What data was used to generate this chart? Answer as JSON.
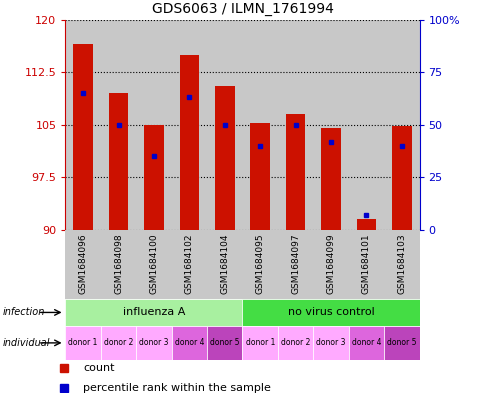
{
  "title": "GDS6063 / ILMN_1761994",
  "samples": [
    "GSM1684096",
    "GSM1684098",
    "GSM1684100",
    "GSM1684102",
    "GSM1684104",
    "GSM1684095",
    "GSM1684097",
    "GSM1684099",
    "GSM1684101",
    "GSM1684103"
  ],
  "counts": [
    116.5,
    109.5,
    105.0,
    115.0,
    110.5,
    105.2,
    106.5,
    104.5,
    91.5,
    104.8
  ],
  "percentile_ranks": [
    65,
    50,
    35,
    63,
    50,
    40,
    50,
    42,
    7,
    40
  ],
  "ylim_left": [
    90,
    120
  ],
  "ylim_right": [
    0,
    100
  ],
  "yticks_left": [
    90,
    97.5,
    105,
    112.5,
    120
  ],
  "yticks_right": [
    0,
    25,
    50,
    75,
    100
  ],
  "ytick_right_labels": [
    "0",
    "25",
    "50",
    "75",
    "100%"
  ],
  "infection_groups": [
    {
      "label": "influenza A",
      "start": 0,
      "end": 5,
      "color": "#A8F0A0"
    },
    {
      "label": "no virus control",
      "start": 5,
      "end": 10,
      "color": "#44DD44"
    }
  ],
  "individual_labels": [
    "donor 1",
    "donor 2",
    "donor 3",
    "donor 4",
    "donor 5",
    "donor 1",
    "donor 2",
    "donor 3",
    "donor 4",
    "donor 5"
  ],
  "individual_colors": [
    "#FFAAFF",
    "#FFAAFF",
    "#FFAAFF",
    "#DD66DD",
    "#BB44BB",
    "#FFAAFF",
    "#FFAAFF",
    "#FFAAFF",
    "#DD66DD",
    "#BB44BB"
  ],
  "bar_color": "#CC1100",
  "dot_color": "#0000CC",
  "base_value": 90,
  "left_axis_color": "#CC0000",
  "right_axis_color": "#0000CC",
  "col_bg_color": "#C8C8C8",
  "plot_bg": "#FFFFFF"
}
